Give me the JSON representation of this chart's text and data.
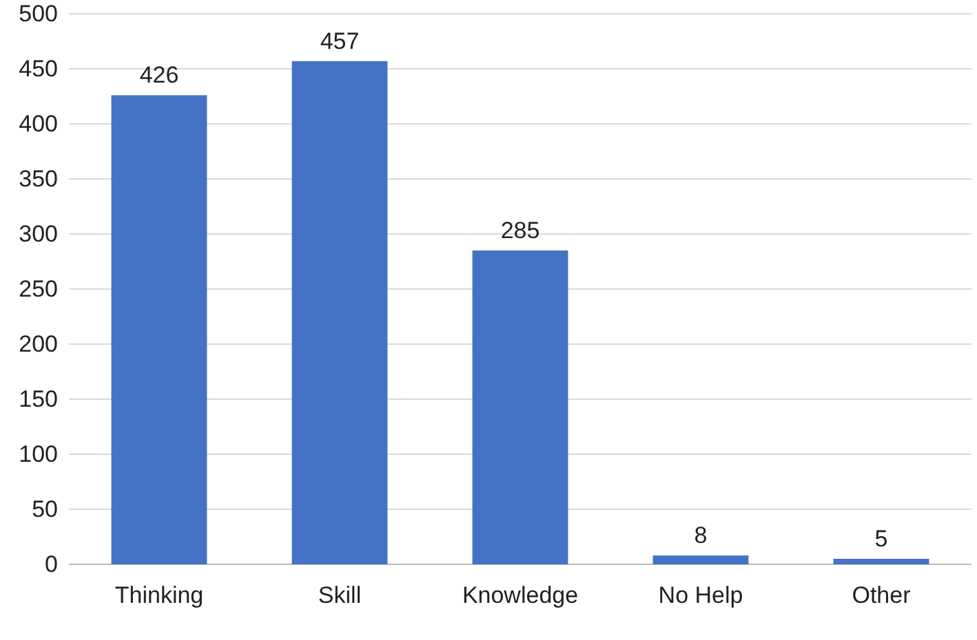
{
  "chart_data": {
    "type": "bar",
    "categories": [
      "Thinking",
      "Skill",
      "Knowledge",
      "No Help",
      "Other"
    ],
    "values": [
      426,
      457,
      285,
      8,
      5
    ],
    "color": "#4472c4",
    "ylim": [
      0,
      500
    ],
    "yticks": [
      0,
      50,
      100,
      150,
      200,
      250,
      300,
      350,
      400,
      450,
      500
    ],
    "grid": "y",
    "data_labels": true
  }
}
